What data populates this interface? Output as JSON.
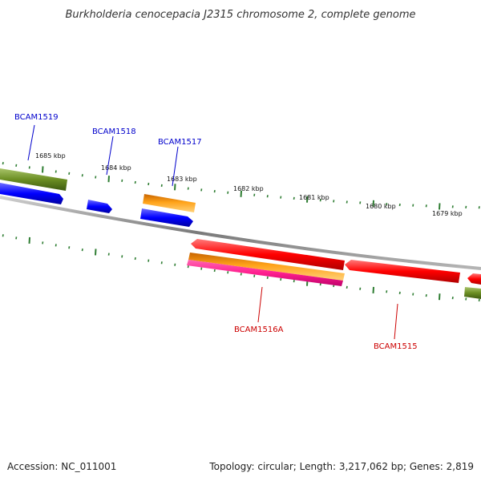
{
  "title": "Burkholderia cenocepacia J2315 chromosome 2, complete genome",
  "kbp_labels": [
    "1685 kbp",
    "1684 kbp",
    "1683 kbp",
    "1682 kbp",
    "1681 kbp",
    "1680 kbp",
    "1679 kbp"
  ],
  "genes": [
    {
      "name": "BCAM1519",
      "color": "#0000cc"
    },
    {
      "name": "BCAM1518",
      "color": "#0000cc"
    },
    {
      "name": "BCAM1517",
      "color": "#0000cc"
    },
    {
      "name": "BCAM1516A",
      "color": "#cc0000"
    },
    {
      "name": "BCAM1515",
      "color": "#cc0000"
    }
  ],
  "track_colors": {
    "olive": "#6b8e23",
    "blue": "#0000ff",
    "orange": "#ff9900",
    "red": "#ff0000",
    "magenta": "#ff3399",
    "backbone": "#888888",
    "tick": "#2e7d32"
  },
  "footer": {
    "accession": "Accession: NC_011001",
    "topology": "Topology: circular; Length: 3,217,062 bp; Genes: 2,819"
  }
}
